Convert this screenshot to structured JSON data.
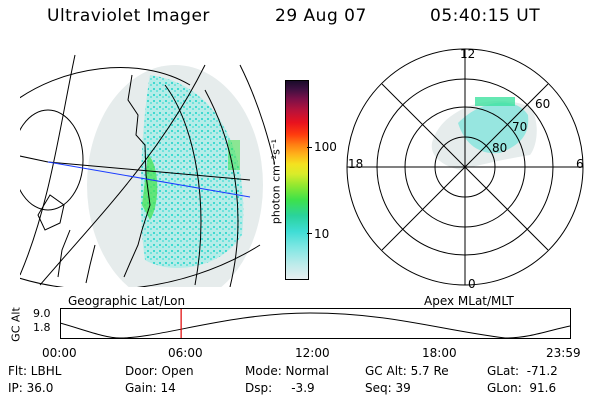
{
  "header": {
    "instrument": "Ultraviolet Imager",
    "date": "29 Aug 07",
    "time": "05:40:15 UT"
  },
  "left_panel": {
    "caption": "Geographic Lat/Lon"
  },
  "right_panel": {
    "caption": "Apex  MLat/MLT",
    "mlt_labels": {
      "top": "12",
      "left": "18",
      "right": "6",
      "bottom": "0"
    },
    "mlat_labels": [
      "60",
      "70",
      "80"
    ]
  },
  "colorbar": {
    "axis_label": "photon cm⁻²s⁻¹",
    "ticks": [
      "100",
      "10"
    ],
    "scale": "log",
    "colors": [
      "#e8eef0",
      "#b9ebea",
      "#7fe7e3",
      "#3fddd5",
      "#2ad39c",
      "#3ee24a",
      "#8fe830",
      "#d9ec2a",
      "#f4e21f",
      "#ffb21a",
      "#ff7d12",
      "#ff3b0e",
      "#e8121e",
      "#b8123a",
      "#7a1048",
      "#3c1040",
      "#1a0b2a"
    ]
  },
  "timeline": {
    "ylabel": "GC Alt",
    "yticks": [
      "9.0",
      "1.8"
    ],
    "xticks": [
      "00:00",
      "06:00",
      "12:00",
      "18:00",
      "23:59"
    ],
    "marker_time_fraction": 0.236,
    "marker_color": "#e00000"
  },
  "info": {
    "flt": "Flt: LBHL",
    "ip": "IP: 36.0",
    "door": "Door: Open",
    "gain": "Gain: 14",
    "mode": "Mode: Normal",
    "dsp": "Dsp:     -3.9",
    "gc_alt": "GC Alt: 5.7 Re",
    "seq": "Seq: 39",
    "glat": "GLat:  -71.2",
    "glon": "GLon:  91.6"
  }
}
